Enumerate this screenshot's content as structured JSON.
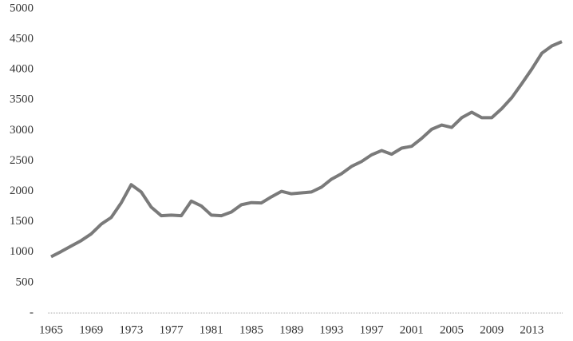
{
  "chart_data": {
    "type": "line",
    "categories": [
      "1965",
      null,
      null,
      null,
      "1969",
      null,
      null,
      null,
      "1973",
      null,
      null,
      null,
      "1977",
      null,
      null,
      null,
      "1981",
      null,
      null,
      null,
      "1985",
      null,
      null,
      null,
      "1989",
      null,
      null,
      null,
      "1993",
      null,
      null,
      null,
      "1997",
      null,
      null,
      null,
      "2001",
      null,
      null,
      null,
      "2005",
      null,
      null,
      null,
      "2009",
      null,
      null,
      null,
      "2013",
      null,
      null,
      null
    ],
    "values": [
      925,
      1010,
      1100,
      1190,
      1300,
      1460,
      1570,
      1810,
      2110,
      1990,
      1740,
      1600,
      1610,
      1600,
      1840,
      1760,
      1610,
      1600,
      1660,
      1780,
      1815,
      1810,
      1910,
      2000,
      1960,
      1975,
      1990,
      2070,
      2200,
      2290,
      2410,
      2490,
      2600,
      2670,
      2610,
      2710,
      2740,
      2870,
      3020,
      3090,
      3050,
      3210,
      3300,
      3210,
      3210,
      3360,
      3540,
      3770,
      4010,
      4270,
      4390,
      4460
    ],
    "color": "#7a7a7a",
    "ylim": [
      0,
      5000
    ],
    "yticks": [
      {
        "value": 0,
        "label": "-"
      },
      500,
      1000,
      1500,
      2000,
      2500,
      3000,
      3500,
      4000,
      4500,
      5000
    ],
    "grid": false
  }
}
